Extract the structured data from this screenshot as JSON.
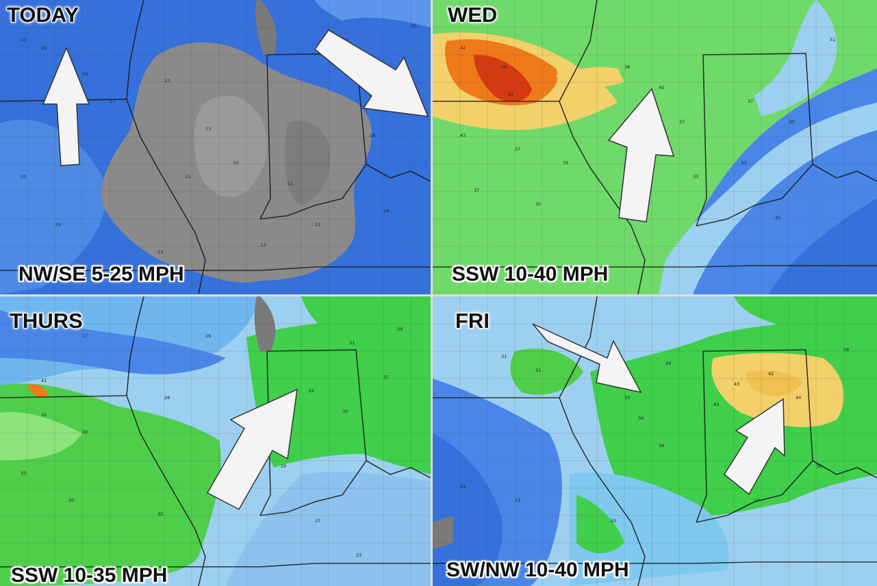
{
  "panels": [
    {
      "day": "TODAY",
      "caption": "NW/SE 5-25 MPH",
      "arrows": [
        "north",
        "southeast"
      ]
    },
    {
      "day": "WED",
      "caption": "SSW 10-40 MPH",
      "arrows": [
        "north"
      ]
    },
    {
      "day": "THURS",
      "caption": "SSW 10-35 MPH",
      "arrows": [
        "northeast"
      ]
    },
    {
      "day": "FRI",
      "caption": "SW/NW 10-40 MPH",
      "arrows": [
        "southeast",
        "northeast"
      ]
    }
  ],
  "colors": {
    "gray": "#8a8a8a",
    "blue_dark": "#2f63d6",
    "blue_mid": "#4a86e8",
    "blue_light": "#9dd0f0",
    "green": "#3fcf4a",
    "green_light": "#a8ec9a",
    "yellow": "#f2d06a",
    "orange": "#ef7a1a",
    "red": "#d43a12",
    "arrow": "#f4f4f4"
  }
}
